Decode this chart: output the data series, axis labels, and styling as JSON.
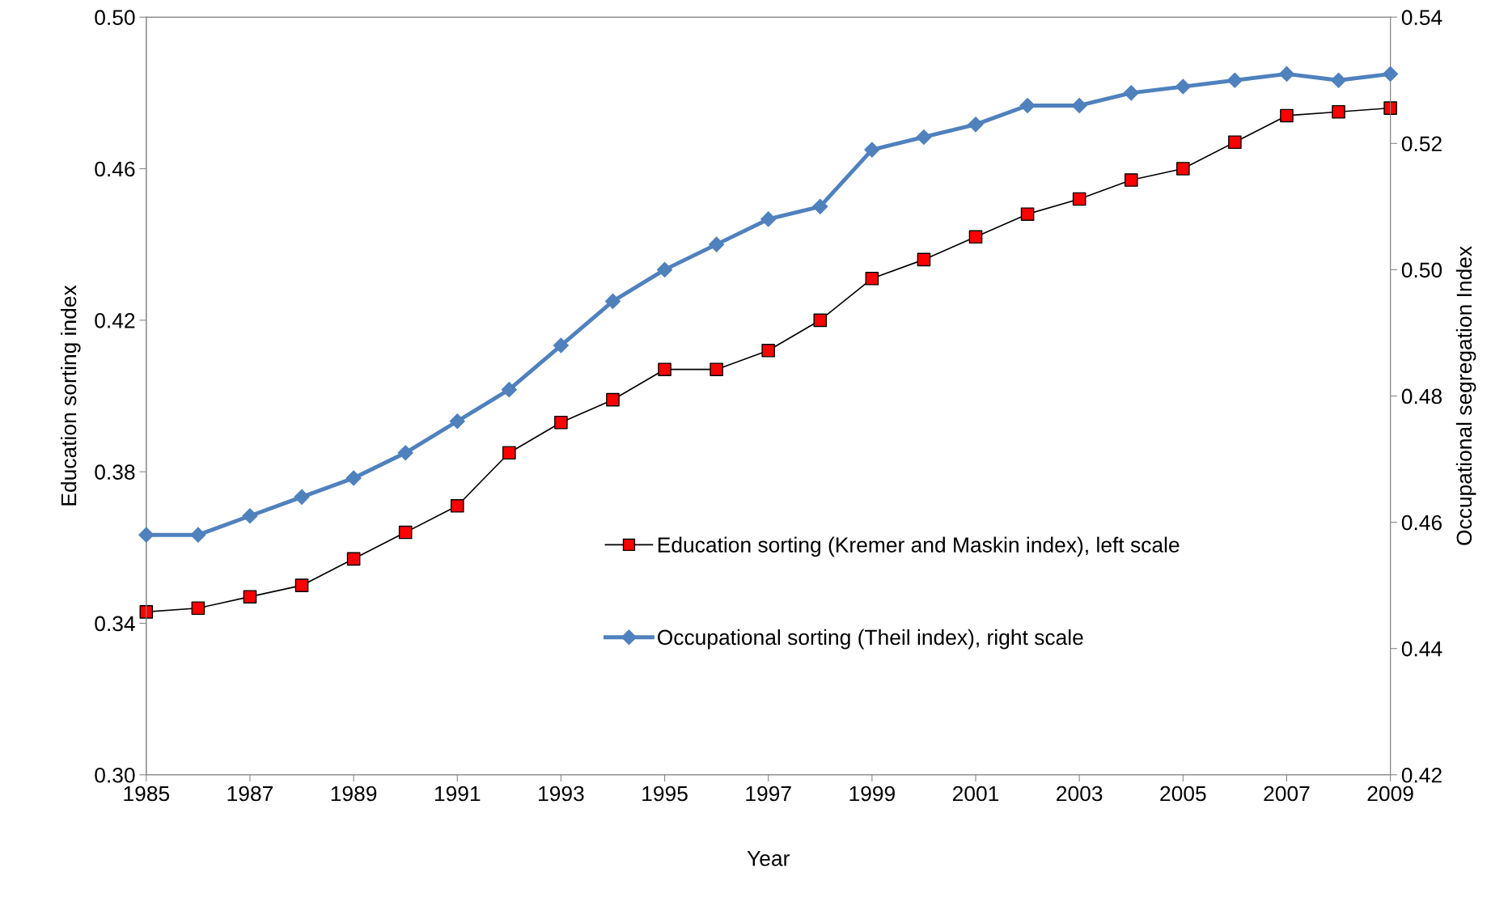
{
  "chart_data": {
    "type": "line",
    "xlabel": "Year",
    "ylabel": "Education sorting index",
    "y2label": "Occupational segregation Index",
    "x": [
      1985,
      1986,
      1987,
      1988,
      1989,
      1990,
      1991,
      1992,
      1993,
      1994,
      1995,
      1996,
      1997,
      1998,
      1999,
      2000,
      2001,
      2002,
      2003,
      2004,
      2005,
      2006,
      2007,
      2008,
      2009
    ],
    "series": [
      {
        "name": "Education sorting (Kremer and Maskin index), left scale",
        "color": "#000000",
        "colors": [
          "#ff0000",
          "#ff0000",
          "#ff0000",
          "#ff0000",
          "#ff0000",
          "#ff0000",
          "#ff0000",
          "#ff0000",
          "#ff0000",
          "#ff0000",
          "#ff0000",
          "#ff0000",
          "#ff0000",
          "#ff0000",
          "#ff0000",
          "#ff0000",
          "#ff0000",
          "#ff0000",
          "#ff0000",
          "#ff0000",
          "#ff0000",
          "#ff0000",
          "#ff0000",
          "#ff0000",
          "#ff0000"
        ],
        "marker": "square",
        "values": [
          0.343,
          0.344,
          0.347,
          0.35,
          0.357,
          0.364,
          0.371,
          0.385,
          0.393,
          0.399,
          0.407,
          0.407,
          0.412,
          0.42,
          0.431,
          0.436,
          0.442,
          0.448,
          0.452,
          0.457,
          0.46,
          0.467,
          0.474,
          0.475,
          0.476
        ]
      },
      {
        "name": "Occupational sorting (Theil index), right scale",
        "color": "#4f81bd",
        "marker": "diamond",
        "axis": "y2",
        "values": [
          0.458,
          0.458,
          0.461,
          0.464,
          0.467,
          0.471,
          0.476,
          0.481,
          0.488,
          0.495,
          0.5,
          0.504,
          0.508,
          0.51,
          0.519,
          0.521,
          0.523,
          0.526,
          0.526,
          0.528,
          0.529,
          0.53,
          0.531,
          0.53,
          0.531
        ]
      }
    ],
    "xlim": [
      1985,
      2009
    ],
    "xticks": [
      1985,
      1987,
      1989,
      1991,
      1993,
      1995,
      1997,
      1999,
      2001,
      2003,
      2005,
      2007,
      2009
    ],
    "ylim": [
      0.3,
      0.5
    ],
    "yticks": [
      {
        "value": 0.3,
        "label": "0.30"
      },
      {
        "value": 0.34,
        "label": "0.34"
      },
      {
        "value": 0.38,
        "label": "0.38"
      },
      {
        "value": 0.42,
        "label": "0.42"
      },
      {
        "value": 0.46,
        "label": "0.46"
      },
      {
        "value": 0.5,
        "label": "0.50"
      }
    ],
    "y2lim": [
      0.42,
      0.54
    ],
    "y2ticks": [
      {
        "value": 0.42,
        "label": "0.42"
      },
      {
        "value": 0.44,
        "label": "0.44"
      },
      {
        "value": 0.46,
        "label": "0.46"
      },
      {
        "value": 0.48,
        "label": "0.48"
      },
      {
        "value": 0.5,
        "label": "0.50"
      },
      {
        "value": 0.52,
        "label": "0.52"
      },
      {
        "value": 0.54,
        "label": "0.54"
      }
    ],
    "grid": false,
    "legend": "center"
  }
}
